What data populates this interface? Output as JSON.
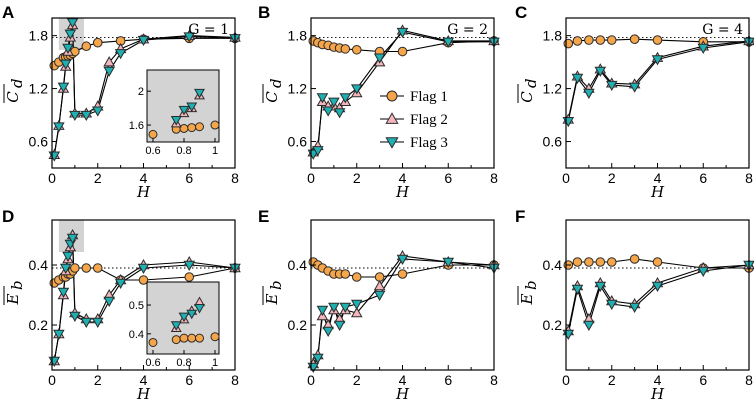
{
  "colors": {
    "flag1_fill": "#f5a54a",
    "flag2_fill": "#f4b6bc",
    "flag3_fill": "#1fb0b3",
    "highlight": "#d3d3d3",
    "stroke": "#2b2b2b"
  },
  "legend": {
    "entries": [
      "Flag 1",
      "Flag 2",
      "Flag 3"
    ],
    "placement": "inside panel B, lower-right"
  },
  "chart_data": [
    {
      "panel": "A",
      "type": "line",
      "G_label": "G = 1",
      "xlabel": "H",
      "ylabel": "C_d",
      "ylabel_main": "C",
      "ylabel_sub": "d",
      "xlim": [
        0,
        8
      ],
      "ylim": [
        0.3,
        2.0
      ],
      "xticks": [
        "0",
        "2",
        "4",
        "6",
        "8"
      ],
      "xtick_vals": [
        0,
        2,
        4,
        6,
        8
      ],
      "yticks": [
        "0.6",
        "1.2",
        "1.8"
      ],
      "ytick_vals": [
        0.6,
        1.2,
        1.8
      ],
      "reference_y": 1.78,
      "highlight_x": [
        0.3,
        1.4
      ],
      "series": [
        {
          "name": "Flag 1",
          "x": [
            0.1,
            0.3,
            0.5,
            0.6,
            0.7,
            0.8,
            0.9,
            1.0,
            1.5,
            2.0,
            3.0,
            4.0,
            6.0,
            8.0
          ],
          "y": [
            1.46,
            1.5,
            1.55,
            1.56,
            1.57,
            1.58,
            1.6,
            1.62,
            1.68,
            1.72,
            1.74,
            1.76,
            1.77,
            1.77
          ]
        },
        {
          "name": "Flag 2",
          "x": [
            0.1,
            0.3,
            0.5,
            0.6,
            0.7,
            0.8,
            0.9,
            1.0,
            1.5,
            2.0,
            2.5,
            3.0,
            4.0,
            6.0,
            8.0
          ],
          "y": [
            0.45,
            0.78,
            1.2,
            1.45,
            1.62,
            1.78,
            1.92,
            0.92,
            0.92,
            1.0,
            1.5,
            1.65,
            1.76,
            1.8,
            1.78
          ]
        },
        {
          "name": "Flag 3",
          "x": [
            0.1,
            0.3,
            0.5,
            0.6,
            0.7,
            0.8,
            0.9,
            1.0,
            1.5,
            2.0,
            2.5,
            3.0,
            4.0,
            6.0,
            8.0
          ],
          "y": [
            0.44,
            0.77,
            1.22,
            1.48,
            1.66,
            1.82,
            1.95,
            0.9,
            0.9,
            0.95,
            1.4,
            1.6,
            1.75,
            1.79,
            1.77
          ]
        }
      ],
      "inset": {
        "xlim": [
          0.6,
          1.0
        ],
        "ylim": [
          1.4,
          2.25
        ],
        "xticks": [
          "0.6",
          "0.8",
          "1"
        ],
        "xtick_vals": [
          0.6,
          0.8,
          1.0
        ],
        "yticks": [
          "1.6",
          "2"
        ],
        "ytick_vals": [
          1.6,
          2.0
        ],
        "series": [
          {
            "name": "Flag 1",
            "x": [
              0.6,
              0.75,
              0.8,
              0.85,
              0.9,
              1.0
            ],
            "y": [
              1.49,
              1.55,
              1.56,
              1.57,
              1.58,
              1.6
            ]
          },
          {
            "name": "Flag 2",
            "x": [
              0.75,
              0.8,
              0.85,
              0.9
            ],
            "y": [
              1.62,
              1.74,
              1.8,
              1.95
            ]
          },
          {
            "name": "Flag 3",
            "x": [
              0.75,
              0.8,
              0.85,
              0.9
            ],
            "y": [
              1.66,
              1.78,
              1.82,
              1.98
            ]
          }
        ]
      }
    },
    {
      "panel": "B",
      "type": "line",
      "G_label": "G = 2",
      "xlabel": "H",
      "ylabel": "C_d",
      "ylabel_main": "C",
      "ylabel_sub": "d",
      "xlim": [
        0,
        8
      ],
      "ylim": [
        0.3,
        2.0
      ],
      "xticks": [
        "0",
        "2",
        "4",
        "6",
        "8"
      ],
      "xtick_vals": [
        0,
        2,
        4,
        6,
        8
      ],
      "yticks": [
        "0.6",
        "1.2",
        "1.8"
      ],
      "ytick_vals": [
        0.6,
        1.2,
        1.8
      ],
      "reference_y": 1.78,
      "series": [
        {
          "name": "Flag 1",
          "x": [
            0.1,
            0.3,
            0.5,
            0.75,
            1.0,
            1.25,
            1.5,
            2.0,
            3.0,
            4.0,
            6.0,
            8.0
          ],
          "y": [
            1.74,
            1.72,
            1.7,
            1.69,
            1.67,
            1.66,
            1.65,
            1.64,
            1.62,
            1.62,
            1.72,
            1.74
          ]
        },
        {
          "name": "Flag 2",
          "x": [
            0.1,
            0.3,
            0.5,
            0.75,
            1.0,
            1.25,
            1.5,
            2.0,
            3.0,
            4.0,
            6.0,
            8.0
          ],
          "y": [
            0.48,
            0.55,
            1.05,
            1.0,
            1.0,
            0.98,
            1.05,
            1.15,
            1.5,
            1.86,
            1.74,
            1.74
          ]
        },
        {
          "name": "Flag 3",
          "x": [
            0.1,
            0.3,
            0.5,
            0.75,
            1.0,
            1.25,
            1.5,
            2.0,
            3.0,
            4.0,
            6.0,
            8.0
          ],
          "y": [
            0.46,
            0.5,
            1.1,
            0.95,
            1.05,
            0.93,
            1.1,
            1.2,
            1.55,
            1.84,
            1.73,
            1.73
          ]
        }
      ]
    },
    {
      "panel": "C",
      "type": "line",
      "G_label": "G = 4",
      "xlabel": "H",
      "ylabel": "C_d",
      "ylabel_main": "C",
      "ylabel_sub": "d",
      "xlim": [
        0,
        8
      ],
      "ylim": [
        0.3,
        2.0
      ],
      "xticks": [
        "0",
        "2",
        "4",
        "6",
        "8"
      ],
      "xtick_vals": [
        0,
        2,
        4,
        6,
        8
      ],
      "yticks": [
        "0.6",
        "1.2",
        "1.8"
      ],
      "ytick_vals": [
        0.6,
        1.2,
        1.8
      ],
      "reference_y": 1.78,
      "series": [
        {
          "name": "Flag 1",
          "x": [
            0.1,
            0.5,
            1.0,
            1.5,
            2.0,
            3.0,
            4.0,
            6.0,
            8.0
          ],
          "y": [
            1.71,
            1.74,
            1.75,
            1.75,
            1.75,
            1.76,
            1.75,
            1.73,
            1.73
          ]
        },
        {
          "name": "Flag 2",
          "x": [
            0.1,
            0.5,
            1.0,
            1.5,
            2.0,
            3.0,
            4.0,
            6.0,
            8.0
          ],
          "y": [
            0.85,
            1.34,
            1.2,
            1.42,
            1.26,
            1.25,
            1.55,
            1.68,
            1.74
          ]
        },
        {
          "name": "Flag 3",
          "x": [
            0.1,
            0.5,
            1.0,
            1.5,
            2.0,
            3.0,
            4.0,
            6.0,
            8.0
          ],
          "y": [
            0.83,
            1.32,
            1.15,
            1.4,
            1.24,
            1.22,
            1.53,
            1.66,
            1.73
          ]
        }
      ]
    },
    {
      "panel": "D",
      "type": "line",
      "G_label": "",
      "xlabel": "H",
      "ylabel": "E_b",
      "ylabel_main": "E",
      "ylabel_sub": "b",
      "xlim": [
        0,
        8
      ],
      "ylim": [
        0.05,
        0.55
      ],
      "xticks": [
        "0",
        "2",
        "4",
        "6",
        "8"
      ],
      "xtick_vals": [
        0,
        2,
        4,
        6,
        8
      ],
      "yticks": [
        "0.2",
        "0.4"
      ],
      "ytick_vals": [
        0.2,
        0.4
      ],
      "reference_y": 0.39,
      "highlight_x": [
        0.3,
        1.4
      ],
      "series": [
        {
          "name": "Flag 1",
          "x": [
            0.1,
            0.3,
            0.5,
            0.6,
            0.7,
            0.8,
            0.9,
            1.0,
            1.5,
            2.0,
            3.0,
            4.0,
            6.0,
            8.0
          ],
          "y": [
            0.34,
            0.35,
            0.36,
            0.36,
            0.37,
            0.37,
            0.38,
            0.39,
            0.39,
            0.39,
            0.35,
            0.35,
            0.36,
            0.39
          ]
        },
        {
          "name": "Flag 2",
          "x": [
            0.1,
            0.3,
            0.5,
            0.6,
            0.7,
            0.8,
            0.9,
            1.0,
            1.5,
            2.0,
            2.5,
            3.0,
            4.0,
            6.0,
            8.0
          ],
          "y": [
            0.08,
            0.17,
            0.3,
            0.38,
            0.42,
            0.46,
            0.5,
            0.24,
            0.22,
            0.22,
            0.3,
            0.35,
            0.4,
            0.41,
            0.39
          ]
        },
        {
          "name": "Flag 3",
          "x": [
            0.1,
            0.3,
            0.5,
            0.6,
            0.7,
            0.8,
            0.9,
            1.0,
            1.5,
            2.0,
            2.5,
            3.0,
            4.0,
            6.0,
            8.0
          ],
          "y": [
            0.08,
            0.17,
            0.31,
            0.39,
            0.43,
            0.47,
            0.49,
            0.23,
            0.21,
            0.21,
            0.28,
            0.34,
            0.39,
            0.4,
            0.39
          ]
        }
      ],
      "inset": {
        "xlim": [
          0.6,
          1.0
        ],
        "ylim": [
          0.33,
          0.58
        ],
        "xticks": [
          "0.6",
          "0.8",
          "1"
        ],
        "xtick_vals": [
          0.6,
          0.8,
          1.0
        ],
        "yticks": [
          "0.4",
          "0.5"
        ],
        "ytick_vals": [
          0.4,
          0.5
        ],
        "series": [
          {
            "name": "Flag 1",
            "x": [
              0.6,
              0.75,
              0.8,
              0.85,
              0.9,
              1.0
            ],
            "y": [
              0.37,
              0.38,
              0.385,
              0.385,
              0.385,
              0.39
            ]
          },
          {
            "name": "Flag 2",
            "x": [
              0.75,
              0.8,
              0.85,
              0.9
            ],
            "y": [
              0.42,
              0.45,
              0.48,
              0.51
            ]
          },
          {
            "name": "Flag 3",
            "x": [
              0.75,
              0.8,
              0.85,
              0.9
            ],
            "y": [
              0.43,
              0.46,
              0.47,
              0.49
            ]
          }
        ]
      }
    },
    {
      "panel": "E",
      "type": "line",
      "G_label": "",
      "xlabel": "H",
      "ylabel": "E_b",
      "ylabel_main": "E",
      "ylabel_sub": "b",
      "xlim": [
        0,
        8
      ],
      "ylim": [
        0.05,
        0.55
      ],
      "xticks": [
        "0",
        "2",
        "4",
        "6",
        "8"
      ],
      "xtick_vals": [
        0,
        2,
        4,
        6,
        8
      ],
      "yticks": [
        "0.2",
        "0.4"
      ],
      "ytick_vals": [
        0.2,
        0.4
      ],
      "reference_y": 0.39,
      "series": [
        {
          "name": "Flag 1",
          "x": [
            0.1,
            0.3,
            0.5,
            0.75,
            1.0,
            1.25,
            1.5,
            2.0,
            3.0,
            4.0,
            6.0,
            8.0
          ],
          "y": [
            0.41,
            0.4,
            0.39,
            0.38,
            0.37,
            0.37,
            0.37,
            0.36,
            0.36,
            0.37,
            0.4,
            0.4
          ]
        },
        {
          "name": "Flag 2",
          "x": [
            0.1,
            0.3,
            0.5,
            0.75,
            1.0,
            1.25,
            1.5,
            2.0,
            3.0,
            4.0,
            6.0,
            8.0
          ],
          "y": [
            0.07,
            0.1,
            0.23,
            0.2,
            0.25,
            0.22,
            0.25,
            0.24,
            0.33,
            0.43,
            0.41,
            0.4
          ]
        },
        {
          "name": "Flag 3",
          "x": [
            0.1,
            0.3,
            0.5,
            0.75,
            1.0,
            1.25,
            1.5,
            2.0,
            3.0,
            4.0,
            6.0,
            8.0
          ],
          "y": [
            0.06,
            0.09,
            0.25,
            0.18,
            0.26,
            0.2,
            0.26,
            0.27,
            0.3,
            0.42,
            0.41,
            0.39
          ]
        }
      ]
    },
    {
      "panel": "F",
      "type": "line",
      "G_label": "",
      "xlabel": "H",
      "ylabel": "E_b",
      "ylabel_main": "E",
      "ylabel_sub": "b",
      "xlim": [
        0,
        8
      ],
      "ylim": [
        0.05,
        0.55
      ],
      "xticks": [
        "0",
        "2",
        "4",
        "6",
        "8"
      ],
      "xtick_vals": [
        0,
        2,
        4,
        6,
        8
      ],
      "yticks": [
        "0.2",
        "0.4"
      ],
      "ytick_vals": [
        0.2,
        0.4
      ],
      "reference_y": 0.39,
      "series": [
        {
          "name": "Flag 1",
          "x": [
            0.1,
            0.5,
            1.0,
            1.5,
            2.0,
            3.0,
            4.0,
            6.0,
            8.0
          ],
          "y": [
            0.4,
            0.41,
            0.41,
            0.41,
            0.41,
            0.42,
            0.41,
            0.39,
            0.39
          ]
        },
        {
          "name": "Flag 2",
          "x": [
            0.1,
            0.5,
            1.0,
            1.5,
            2.0,
            3.0,
            4.0,
            6.0,
            8.0
          ],
          "y": [
            0.18,
            0.33,
            0.22,
            0.34,
            0.28,
            0.27,
            0.34,
            0.39,
            0.4
          ]
        },
        {
          "name": "Flag 3",
          "x": [
            0.1,
            0.5,
            1.0,
            1.5,
            2.0,
            3.0,
            4.0,
            6.0,
            8.0
          ],
          "y": [
            0.17,
            0.32,
            0.2,
            0.33,
            0.27,
            0.26,
            0.33,
            0.38,
            0.4
          ]
        }
      ]
    }
  ]
}
